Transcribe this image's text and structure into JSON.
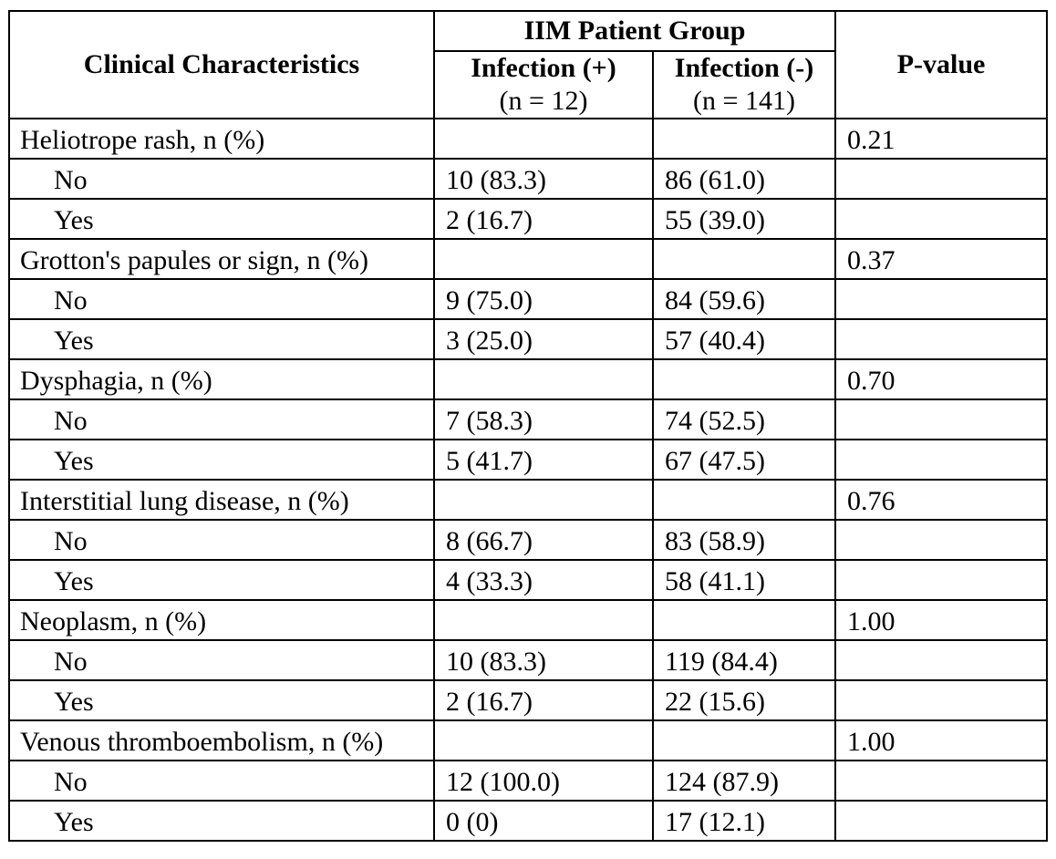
{
  "table": {
    "header": {
      "characteristics": "Clinical Characteristics",
      "group": "IIM Patient Group",
      "sub1": {
        "title": "Infection (+)",
        "n": "(n = 12)"
      },
      "sub2": {
        "title": "Infection (-)",
        "n": "(n = 141)"
      },
      "p_value": "P-value"
    },
    "sections": [
      {
        "label": "Heliotrope rash, n (%)",
        "p_value": "0.21",
        "rows": [
          {
            "label": "No",
            "positive": "10 (83.3)",
            "negative": "86 (61.0)"
          },
          {
            "label": "Yes",
            "positive": "2 (16.7)",
            "negative": "55 (39.0)"
          }
        ]
      },
      {
        "label": "Grotton's papules or sign, n (%)",
        "p_value": "0.37",
        "rows": [
          {
            "label": "No",
            "positive": "9 (75.0)",
            "negative": "84 (59.6)"
          },
          {
            "label": "Yes",
            "positive": "3 (25.0)",
            "negative": "57 (40.4)"
          }
        ]
      },
      {
        "label": "Dysphagia, n (%)",
        "p_value": "0.70",
        "rows": [
          {
            "label": "No",
            "positive": "7 (58.3)",
            "negative": "74 (52.5)"
          },
          {
            "label": "Yes",
            "positive": "5 (41.7)",
            "negative": "67 (47.5)"
          }
        ]
      },
      {
        "label": "Interstitial lung disease, n (%)",
        "p_value": "0.76",
        "rows": [
          {
            "label": "No",
            "positive": "8 (66.7)",
            "negative": "83 (58.9)"
          },
          {
            "label": "Yes",
            "positive": "4 (33.3)",
            "negative": "58 (41.1)"
          }
        ]
      },
      {
        "label": "Neoplasm, n (%)",
        "p_value": "1.00",
        "rows": [
          {
            "label": "No",
            "positive": "10 (83.3)",
            "negative": "119 (84.4)"
          },
          {
            "label": "Yes",
            "positive": "2 (16.7)",
            "negative": "22 (15.6)"
          }
        ]
      },
      {
        "label": "Venous thromboembolism, n (%)",
        "p_value": "1.00",
        "rows": [
          {
            "label": "No",
            "positive": "12 (100.0)",
            "negative": "124 (87.9)"
          },
          {
            "label": "Yes",
            "positive": "0 (0)",
            "negative": "17 (12.1)"
          }
        ]
      }
    ]
  },
  "colors": {
    "text": "#000000",
    "border": "#000000",
    "background": "#ffffff"
  }
}
